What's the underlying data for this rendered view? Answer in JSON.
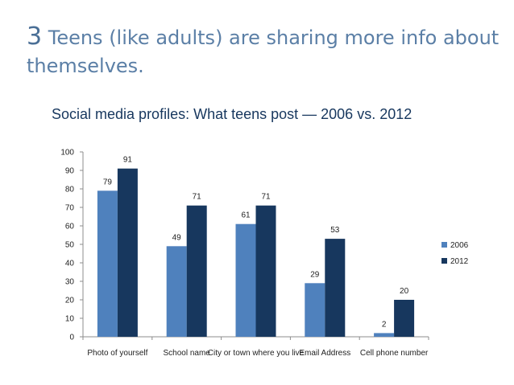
{
  "slide": {
    "number": "3",
    "title": "Teens (like adults) are sharing more info about themselves."
  },
  "chart_data": {
    "type": "bar",
    "title": "Social media profiles: What teens post — 2006 vs. 2012",
    "categories": [
      "Photo of yourself",
      "School name",
      "City or town where you live",
      "Email Address",
      "Cell phone number"
    ],
    "series": [
      {
        "name": "2006",
        "values": [
          79,
          49,
          61,
          29,
          2
        ],
        "color": "#4f81bd"
      },
      {
        "name": "2012",
        "values": [
          91,
          71,
          71,
          53,
          20
        ],
        "color": "#17375e"
      }
    ],
    "ylim": [
      0,
      100
    ],
    "yticks": [
      0,
      10,
      20,
      30,
      40,
      50,
      60,
      70,
      80,
      90,
      100
    ],
    "xlabel": "",
    "ylabel": "",
    "grid": false,
    "legend": "right"
  }
}
